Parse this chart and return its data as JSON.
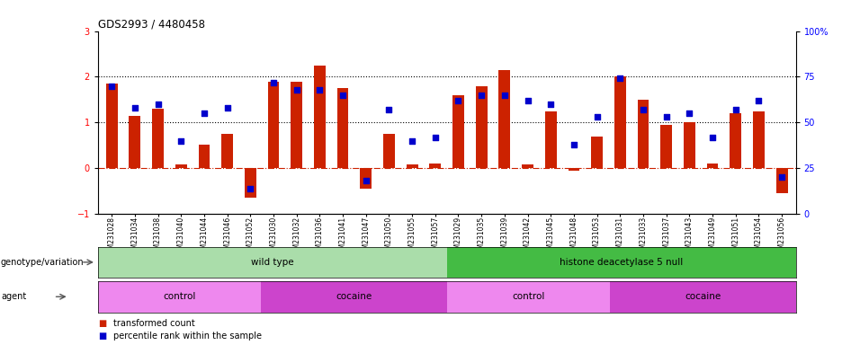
{
  "title": "GDS2993 / 4480458",
  "samples": [
    "GSM231028",
    "GSM231034",
    "GSM231038",
    "GSM231040",
    "GSM231044",
    "GSM231046",
    "GSM231052",
    "GSM231030",
    "GSM231032",
    "GSM231036",
    "GSM231041",
    "GSM231047",
    "GSM231050",
    "GSM231055",
    "GSM231057",
    "GSM231029",
    "GSM231035",
    "GSM231039",
    "GSM231042",
    "GSM231045",
    "GSM231048",
    "GSM231053",
    "GSM231031",
    "GSM231033",
    "GSM231037",
    "GSM231043",
    "GSM231049",
    "GSM231051",
    "GSM231054",
    "GSM231056"
  ],
  "bar_values": [
    1.85,
    1.15,
    1.3,
    0.08,
    0.52,
    0.75,
    -0.65,
    1.9,
    1.9,
    2.25,
    1.75,
    -0.45,
    0.75,
    0.08,
    0.1,
    1.6,
    1.8,
    2.15,
    0.08,
    1.25,
    -0.05,
    0.7,
    2.0,
    1.5,
    0.95,
    1.0,
    0.1,
    1.2,
    1.25,
    -0.55
  ],
  "percentile_values": [
    70,
    58,
    60,
    40,
    55,
    58,
    14,
    72,
    68,
    68,
    65,
    18,
    57,
    40,
    42,
    62,
    65,
    65,
    62,
    60,
    38,
    53,
    74,
    57,
    53,
    55,
    42,
    57,
    62,
    20
  ],
  "genotype_groups": [
    {
      "label": "wild type",
      "start": 0,
      "end": 14,
      "color": "#aaddaa"
    },
    {
      "label": "histone deacetylase 5 null",
      "start": 15,
      "end": 29,
      "color": "#44bb44"
    }
  ],
  "agent_groups": [
    {
      "label": "control",
      "start": 0,
      "end": 6,
      "color": "#ee88ee"
    },
    {
      "label": "cocaine",
      "start": 7,
      "end": 14,
      "color": "#cc44cc"
    },
    {
      "label": "control",
      "start": 15,
      "end": 21,
      "color": "#ee88ee"
    },
    {
      "label": "cocaine",
      "start": 22,
      "end": 29,
      "color": "#cc44cc"
    }
  ],
  "bar_color": "#cc2200",
  "dot_color": "#0000cc",
  "ylim_left": [
    -1,
    3
  ],
  "ylim_right": [
    0,
    100
  ],
  "yticks_left": [
    -1,
    0,
    1,
    2,
    3
  ],
  "yticks_right": [
    0,
    25,
    50,
    75,
    100
  ],
  "hlines_dotted": [
    1,
    2
  ],
  "hline_dashdot": 0,
  "background_color": "#ffffff"
}
